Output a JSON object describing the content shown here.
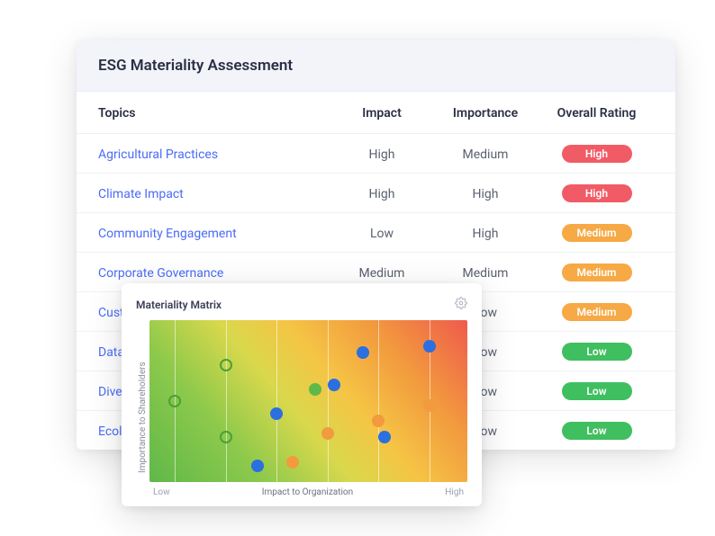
{
  "card": {
    "title": "ESG Materiality Assessment",
    "columns": {
      "topic": "Topics",
      "impact": "Impact",
      "importance": "Importance",
      "rating": "Overall Rating"
    },
    "badgeColors": {
      "High": "#f15b66",
      "Medium": "#f6a944",
      "Low": "#3fbf5f"
    },
    "rows": [
      {
        "topic": "Agricultural Practices",
        "impact": "High",
        "importance": "Medium",
        "rating": "High"
      },
      {
        "topic": "Climate Impact",
        "impact": "High",
        "importance": "High",
        "rating": "High"
      },
      {
        "topic": "Community Engagement",
        "impact": "Low",
        "importance": "High",
        "rating": "Medium"
      },
      {
        "topic": "Corporate Governance",
        "impact": "Medium",
        "importance": "Medium",
        "rating": "Medium"
      },
      {
        "topic": "Custom",
        "impact": "",
        "importance": "Low",
        "rating": "Medium"
      },
      {
        "topic": "Data Se",
        "impact": "",
        "importance": "Low",
        "rating": "Low"
      },
      {
        "topic": "Diversit",
        "impact": "",
        "importance": "Low",
        "rating": "Low"
      },
      {
        "topic": "Ecologi",
        "impact": "",
        "importance": "Low",
        "rating": "Low"
      }
    ]
  },
  "matrix": {
    "title": "Materiality Matrix",
    "xlabel": "Impact to Organization",
    "ylabel": "Importance to Shareholders",
    "lowLabel": "Low",
    "highLabel": "High",
    "gradient": "linear-gradient(50deg, #5fb84a 0%, #8cc94b 25%, #d9d84c 45%, #f5c445 60%, #f29a3e 78%, #ef5a4c 100%)",
    "gridLines": [
      8,
      24,
      40,
      56,
      72,
      88
    ],
    "colors": {
      "blue": "#2b6fe0",
      "orange": "#f29a3e",
      "greenLine": "#4aa03a",
      "greenFill": "#5fb84a"
    },
    "points": [
      {
        "x": 8,
        "y": 50,
        "color": "greenLine",
        "style": "open"
      },
      {
        "x": 24,
        "y": 72,
        "color": "greenLine",
        "style": "open"
      },
      {
        "x": 24,
        "y": 28,
        "color": "greenLine",
        "style": "open"
      },
      {
        "x": 34,
        "y": 10,
        "color": "blue",
        "style": "filled"
      },
      {
        "x": 40,
        "y": 42,
        "color": "blue",
        "style": "filled"
      },
      {
        "x": 45,
        "y": 12,
        "color": "orange",
        "style": "filled"
      },
      {
        "x": 52,
        "y": 57,
        "color": "greenFill",
        "style": "filled"
      },
      {
        "x": 58,
        "y": 60,
        "color": "blue",
        "style": "filled"
      },
      {
        "x": 56,
        "y": 30,
        "color": "orange",
        "style": "filled"
      },
      {
        "x": 67,
        "y": 80,
        "color": "blue",
        "style": "filled"
      },
      {
        "x": 72,
        "y": 38,
        "color": "orange",
        "style": "filled"
      },
      {
        "x": 74,
        "y": 28,
        "color": "blue",
        "style": "filled"
      },
      {
        "x": 88,
        "y": 84,
        "color": "blue",
        "style": "filled"
      },
      {
        "x": 88,
        "y": 47,
        "color": "orange",
        "style": "filled"
      }
    ]
  }
}
